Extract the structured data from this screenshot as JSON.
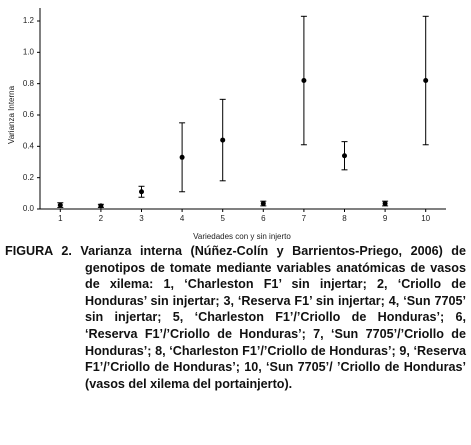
{
  "chart_data": {
    "type": "errorbar",
    "y_label": "Varianza Interna",
    "x_label": "Variedades con y sin injerto",
    "x": [
      1,
      2,
      3,
      4,
      5,
      6,
      7,
      8,
      9,
      10
    ],
    "values": [
      0.025,
      0.02,
      0.11,
      0.33,
      0.44,
      0.035,
      0.82,
      0.34,
      0.035,
      0.82
    ],
    "errors": [
      0.015,
      0.01,
      0.035,
      0.22,
      0.26,
      0.015,
      0.41,
      0.09,
      0.015,
      0.41
    ],
    "color": "#000000",
    "xlim": [
      0.5,
      10.5
    ],
    "xticks": [
      1,
      2,
      3,
      4,
      5,
      6,
      7,
      8,
      9,
      10
    ],
    "ylim": [
      0,
      1.2
    ],
    "yticks": [
      {
        "value": 0,
        "label": "0.0"
      },
      0.2,
      0.4,
      0.6,
      0.8,
      {
        "value": 1,
        "label": "1.0"
      },
      1.2
    ]
  },
  "caption": {
    "label": "FIGURA 2.",
    "text": "Varianza interna (Núñez-Colín y Barrientos-Priego, 2006) de genotipos de tomate mediante variables anatómicas de vasos de xilema: 1, ‘Charleston F1’ sin injertar; 2, ‘Criollo de Honduras’ sin injertar; 3, ‘Reserva F1’ sin injertar; 4, ‘Sun 7705’ sin injertar; 5, ‘Charleston F1’/’Criollo de Honduras’; 6, ‘Reserva F1’/’Criollo de Honduras’; 7, ‘Sun 7705’/’Criollo de Honduras’; 8, ‘Charleston F1’/’Criollo de Honduras’; 9, ‘Reserva F1’/’Criollo de Honduras’; 10, ‘Sun 7705’/ ’Criollo de Honduras’ (vasos del xilema del portainjerto)."
  }
}
